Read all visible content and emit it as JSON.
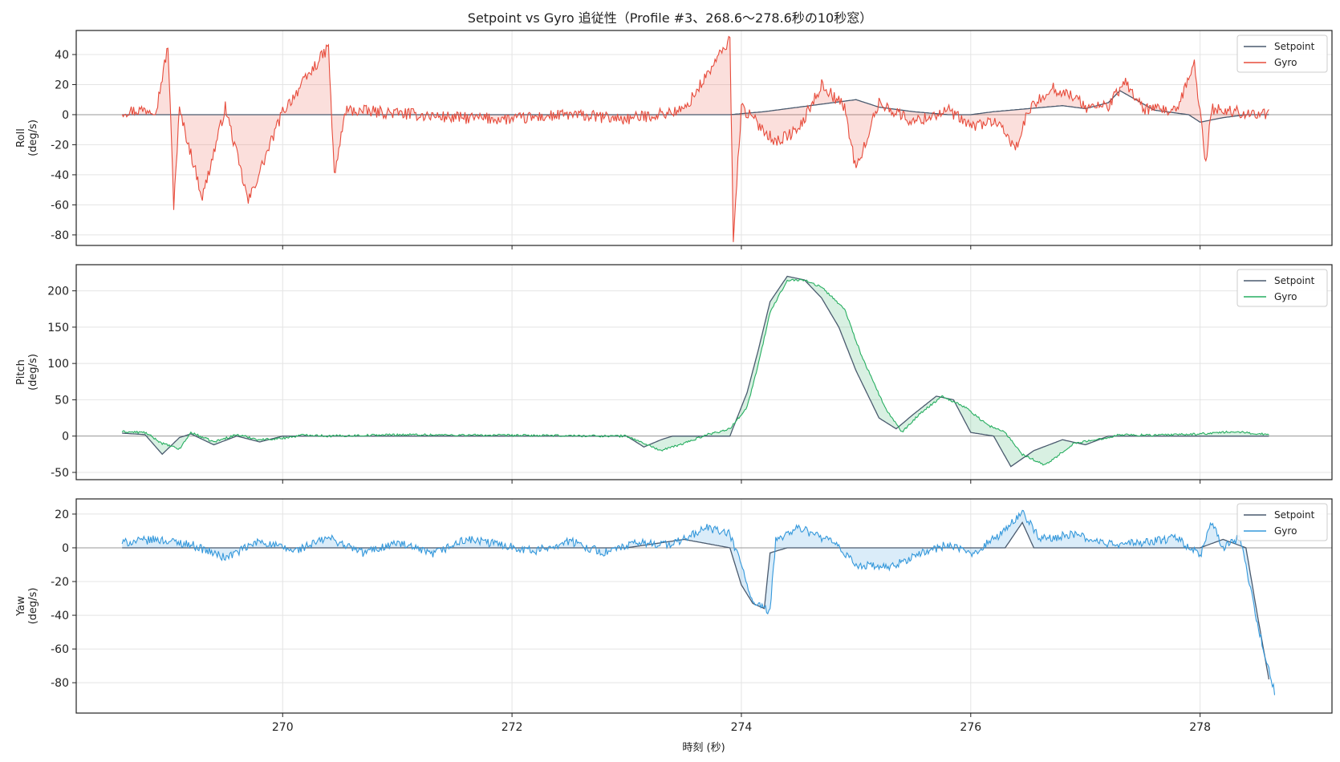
{
  "title": "Setpoint vs Gyro 追従性（Profile #3、268.6〜278.6秒の10秒窓）",
  "xlabel": "時刻 (秒)",
  "colors": {
    "setpoint": "#4a5a6e",
    "roll": "#e74c3c",
    "pitch": "#27ae60",
    "yaw": "#3498db",
    "zero_line": "#9a9a9a",
    "grid": "#e4e4e4"
  },
  "chart_data": [
    {
      "type": "line",
      "panel": "roll",
      "ylabel": "Roll\n(deg/s)",
      "xlim": [
        268.2,
        279.15
      ],
      "ylim": [
        -87,
        56
      ],
      "xticks": [
        270,
        272,
        274,
        276,
        278
      ],
      "yticks": [
        40,
        20,
        0,
        -20,
        -40,
        -60,
        -80
      ],
      "legend": "top-right",
      "fill_between": true,
      "series": [
        {
          "name": "Setpoint",
          "x": [
            268.6,
            270,
            272,
            273.5,
            273.9,
            274.2,
            274.5,
            274.8,
            275.0,
            275.2,
            275.5,
            275.8,
            276.0,
            276.2,
            276.5,
            276.8,
            277.0,
            277.2,
            277.3,
            277.6,
            277.9,
            278.0,
            278.2,
            278.4,
            278.6
          ],
          "y": [
            0,
            0,
            0,
            0,
            0,
            2,
            5,
            8,
            10,
            5,
            2,
            0,
            0,
            2,
            4,
            6,
            4,
            8,
            16,
            3,
            0,
            -5,
            -2,
            0,
            0
          ]
        },
        {
          "name": "Gyro",
          "x": [
            268.6,
            268.9,
            269.0,
            269.05,
            269.1,
            269.3,
            269.5,
            269.7,
            270.0,
            270.4,
            270.45,
            270.55,
            271.0,
            271.5,
            272.0,
            272.5,
            273.0,
            273.5,
            273.9,
            273.93,
            274.0,
            274.3,
            274.5,
            274.7,
            274.9,
            275.0,
            275.2,
            275.5,
            275.8,
            276.0,
            276.2,
            276.4,
            276.5,
            276.7,
            276.9,
            277.0,
            277.2,
            277.35,
            277.5,
            277.8,
            277.95,
            278.05,
            278.1,
            278.3,
            278.6
          ],
          "y": [
            2,
            4,
            46,
            -60,
            3,
            -55,
            5,
            -58,
            2,
            45,
            -41,
            3,
            1,
            -2,
            -3,
            0,
            -3,
            3,
            50,
            -81,
            5,
            -18,
            -10,
            20,
            5,
            -37,
            8,
            -5,
            3,
            -8,
            -4,
            -22,
            2,
            18,
            12,
            5,
            6,
            22,
            4,
            2,
            35,
            -33,
            4,
            2,
            0
          ]
        }
      ]
    },
    {
      "type": "line",
      "panel": "pitch",
      "ylabel": "Pitch\n(deg/s)",
      "xlim": [
        268.2,
        279.15
      ],
      "ylim": [
        -60,
        236
      ],
      "xticks": [
        270,
        272,
        274,
        276,
        278
      ],
      "yticks": [
        200,
        150,
        100,
        50,
        0,
        -50
      ],
      "legend": "top-right",
      "fill_between": true,
      "series": [
        {
          "name": "Setpoint",
          "x": [
            268.6,
            268.8,
            268.95,
            269.1,
            269.2,
            269.4,
            269.6,
            269.8,
            270.0,
            270.2,
            270.4,
            271.0,
            272.0,
            273.0,
            273.15,
            273.3,
            273.4,
            273.7,
            273.9,
            274.05,
            274.15,
            274.25,
            274.4,
            274.55,
            274.7,
            274.85,
            275.0,
            275.2,
            275.35,
            275.5,
            275.7,
            275.85,
            276.0,
            276.2,
            276.35,
            276.55,
            276.8,
            277.0,
            277.2,
            277.5,
            278.0,
            278.6
          ],
          "y": [
            4,
            2,
            -25,
            -2,
            3,
            -12,
            0,
            -8,
            0,
            0,
            0,
            0,
            0,
            0,
            -15,
            -5,
            0,
            0,
            0,
            60,
            120,
            185,
            220,
            215,
            190,
            150,
            90,
            25,
            10,
            30,
            55,
            50,
            5,
            0,
            -42,
            -20,
            -5,
            -12,
            0,
            0,
            0,
            0
          ]
        },
        {
          "name": "Gyro",
          "x": [
            268.6,
            268.8,
            268.95,
            269.1,
            269.2,
            269.4,
            269.6,
            269.8,
            270.0,
            270.2,
            270.4,
            271.0,
            272.0,
            273.0,
            273.15,
            273.3,
            273.5,
            273.7,
            273.9,
            274.05,
            274.15,
            274.25,
            274.4,
            274.55,
            274.7,
            274.9,
            275.05,
            275.25,
            275.4,
            275.55,
            275.75,
            275.95,
            276.15,
            276.3,
            276.45,
            276.65,
            276.9,
            277.1,
            277.3,
            277.6,
            278.0,
            278.3,
            278.6
          ],
          "y": [
            6,
            5,
            -10,
            -18,
            5,
            -8,
            2,
            -5,
            -3,
            2,
            0,
            2,
            1,
            0,
            -10,
            -20,
            -10,
            2,
            10,
            40,
            100,
            170,
            215,
            215,
            205,
            175,
            110,
            40,
            5,
            30,
            55,
            40,
            15,
            5,
            -25,
            -40,
            -10,
            -5,
            2,
            1,
            3,
            6,
            2
          ]
        }
      ]
    },
    {
      "type": "line",
      "panel": "yaw",
      "ylabel": "Yaw\n(deg/s)",
      "xlim": [
        268.2,
        279.15
      ],
      "ylim": [
        -98,
        29
      ],
      "xticks": [
        270,
        272,
        274,
        276,
        278
      ],
      "yticks": [
        20,
        0,
        -20,
        -40,
        -60,
        -80
      ],
      "legend": "top-right",
      "fill_between": true,
      "series": [
        {
          "name": "Setpoint",
          "x": [
            268.6,
            269.0,
            270.0,
            271.0,
            272.0,
            273.0,
            273.5,
            273.9,
            274.0,
            274.1,
            274.2,
            274.25,
            274.4,
            275.0,
            276.0,
            276.3,
            276.45,
            276.55,
            277.0,
            278.0,
            278.2,
            278.4,
            278.5,
            278.6
          ],
          "y": [
            0,
            0,
            0,
            0,
            0,
            0,
            5,
            0,
            -22,
            -33,
            -36,
            -3,
            0,
            0,
            0,
            0,
            15,
            0,
            0,
            0,
            5,
            0,
            -40,
            -78
          ]
        },
        {
          "name": "Gyro",
          "x": [
            268.6,
            268.9,
            269.2,
            269.5,
            269.8,
            270.1,
            270.4,
            270.7,
            271.0,
            271.3,
            271.6,
            271.9,
            272.2,
            272.5,
            272.8,
            273.1,
            273.4,
            273.7,
            273.9,
            274.0,
            274.1,
            274.25,
            274.3,
            274.5,
            274.8,
            275.0,
            275.3,
            275.5,
            275.8,
            276.0,
            276.3,
            276.45,
            276.6,
            276.9,
            277.2,
            277.5,
            277.8,
            278.0,
            278.1,
            278.2,
            278.35,
            278.45,
            278.55,
            278.65
          ],
          "y": [
            3,
            5,
            2,
            -6,
            4,
            -2,
            6,
            -3,
            3,
            -4,
            5,
            2,
            -2,
            4,
            -3,
            3,
            2,
            12,
            8,
            -10,
            -33,
            -38,
            5,
            12,
            3,
            -10,
            -12,
            -5,
            2,
            -4,
            10,
            22,
            5,
            8,
            2,
            3,
            6,
            -5,
            15,
            0,
            6,
            -28,
            -60,
            -85
          ]
        }
      ]
    }
  ]
}
